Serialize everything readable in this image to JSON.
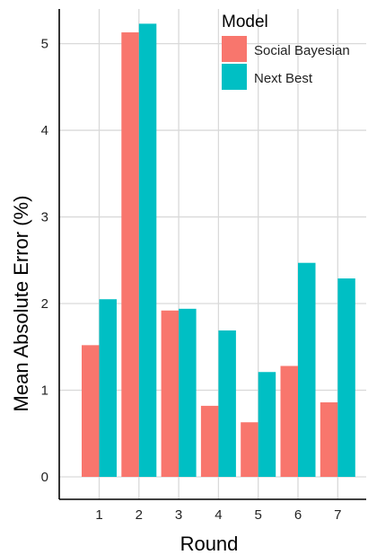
{
  "chart_data": {
    "type": "bar",
    "xlabel": "Round",
    "ylabel": "Mean Absolute Error (%)",
    "categories": [
      "1",
      "2",
      "3",
      "4",
      "5",
      "6",
      "7"
    ],
    "series": [
      {
        "name": "Social Bayesian",
        "color": "#F8766D",
        "values": [
          1.52,
          5.13,
          1.92,
          0.82,
          0.63,
          1.28,
          0.86
        ]
      },
      {
        "name": "Next Best",
        "color": "#00BFC4",
        "values": [
          2.05,
          5.23,
          1.94,
          1.69,
          1.21,
          2.47,
          2.29
        ]
      }
    ],
    "ylim": [
      0,
      5.4
    ],
    "yticks": [
      0,
      1,
      2,
      3,
      4,
      5
    ],
    "grid": true,
    "legend": {
      "title": "Model",
      "position": "top-right"
    }
  }
}
